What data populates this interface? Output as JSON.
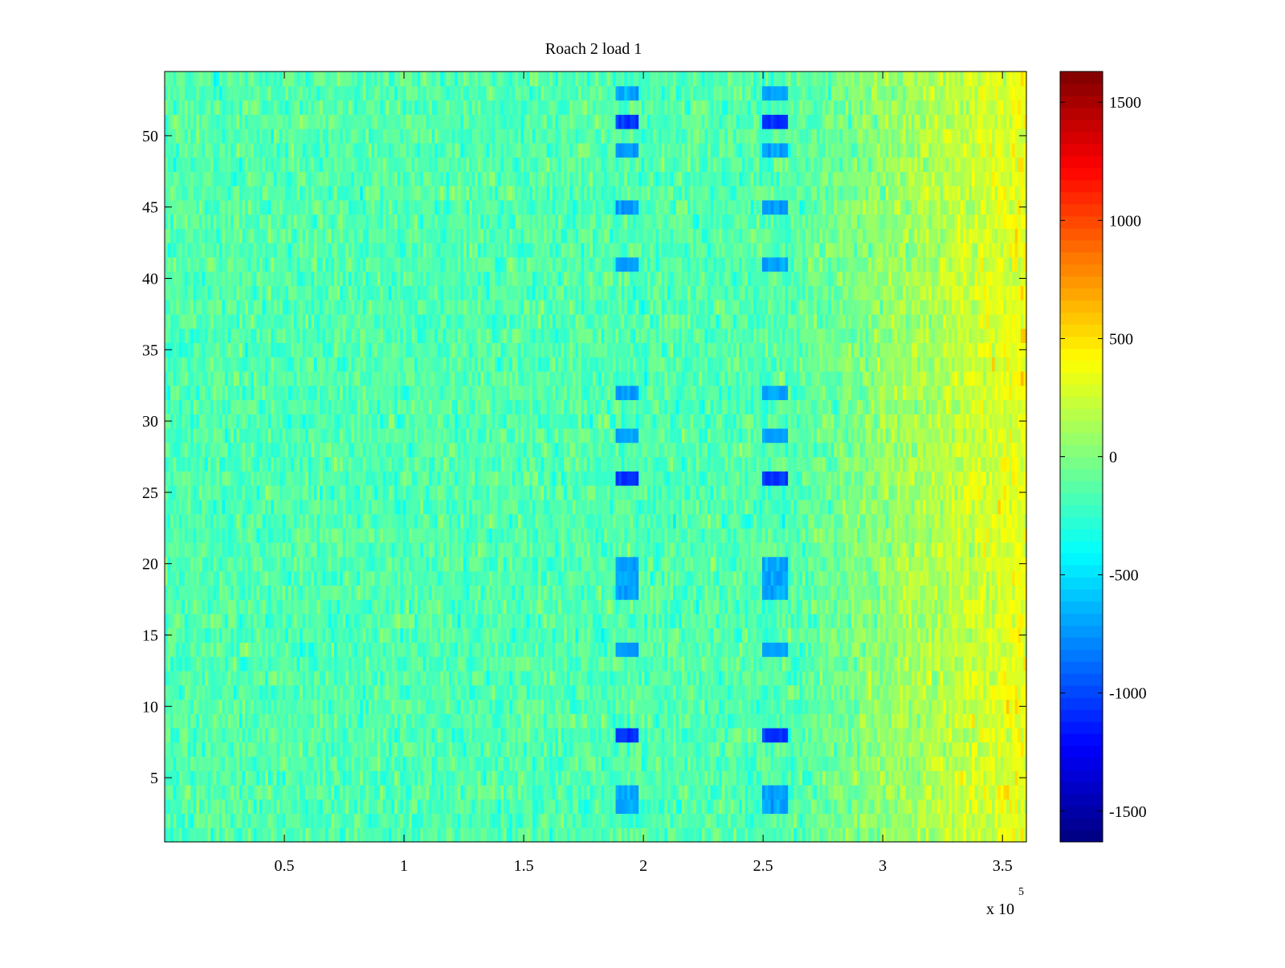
{
  "chart_data": {
    "type": "heatmap",
    "title": "Roach 2 load 1",
    "xlabel": "",
    "ylabel": "",
    "x_exponent_label": "x 10",
    "x_exponent_power": "5",
    "xlim": [
      0,
      3.6
    ],
    "ylim": [
      0.5,
      54.5
    ],
    "x_ticks": [
      0.5,
      1,
      1.5,
      2,
      2.5,
      3,
      3.5
    ],
    "x_tick_labels": [
      "0.5",
      "1",
      "1.5",
      "2",
      "2.5",
      "3",
      "3.5"
    ],
    "y_ticks": [
      5,
      10,
      15,
      20,
      25,
      30,
      35,
      40,
      45,
      50
    ],
    "y_tick_labels": [
      "5",
      "10",
      "15",
      "20",
      "25",
      "30",
      "35",
      "40",
      "45",
      "50"
    ],
    "rows": 54,
    "colormap": "jet",
    "clim": [
      -1630,
      1630
    ],
    "colorbar_ticks": [
      1500,
      1000,
      500,
      0,
      -500,
      -1000,
      -1500
    ],
    "colorbar_tick_labels": [
      "1500",
      "1000",
      "500",
      "0",
      "-500",
      "-1000",
      "-1500"
    ],
    "baseline_value": -150,
    "trend_to_value": 350,
    "trend_start_x": 2.6,
    "dip_columns": [
      {
        "x_center": 1.93,
        "width": 0.1,
        "rows": [
          3,
          4,
          8,
          14,
          18,
          19,
          20,
          26,
          29,
          32,
          41,
          45,
          49,
          51,
          53
        ]
      },
      {
        "x_center": 2.55,
        "width": 0.1,
        "rows": [
          3,
          4,
          8,
          14,
          18,
          19,
          20,
          26,
          29,
          32,
          41,
          45,
          49,
          51,
          53
        ]
      }
    ],
    "strong_dip_rows": [
      8,
      26,
      51
    ]
  }
}
